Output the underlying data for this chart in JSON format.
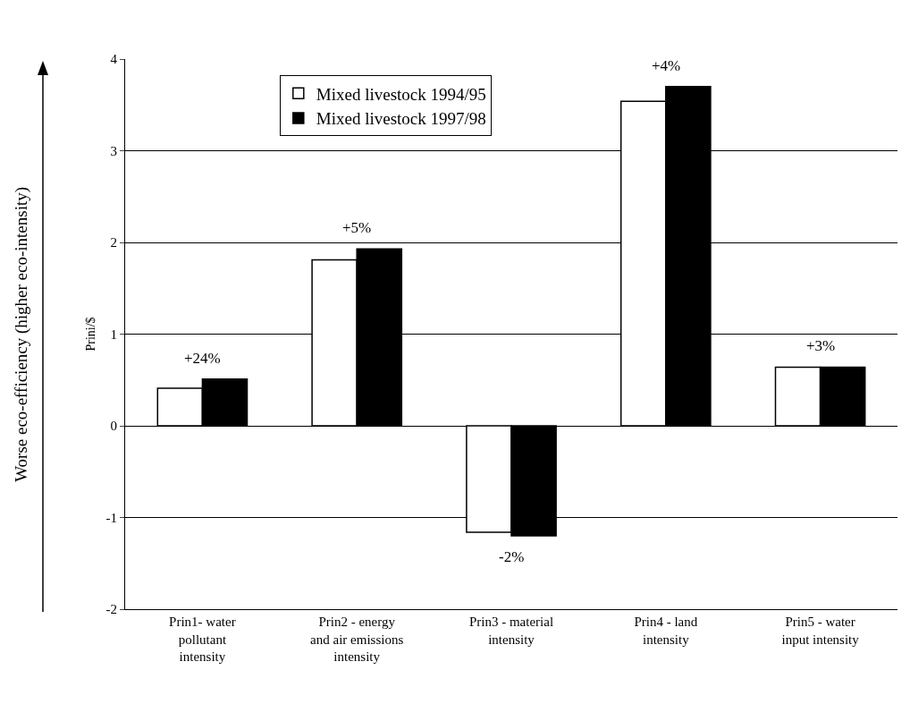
{
  "chart_data": {
    "type": "bar",
    "ylabel": "Prini/$",
    "categories": [
      "Prin1- water pollutant intensity",
      "Prin2 - energy and air emissions intensity",
      "Prin3 - material intensity",
      "Prin4 - land intensity",
      "Prin5 - water input intensity"
    ],
    "series": [
      {
        "name": "Mixed livestock 1994/95",
        "color": "#ffffff",
        "values": [
          0.41,
          1.81,
          -1.16,
          3.54,
          0.64
        ]
      },
      {
        "name": "Mixed livestock 1997/98",
        "color": "#000000",
        "values": [
          0.51,
          1.93,
          -1.2,
          3.7,
          0.64
        ]
      }
    ],
    "ylim": [
      -2,
      4
    ],
    "yticks": [
      -2,
      -1,
      0,
      1,
      2,
      3,
      4
    ],
    "grid": "y",
    "legend": "top left",
    "annotations": [
      {
        "text": "+24%",
        "x": "Prin1- water pollutant intensity",
        "y": 0.51
      },
      {
        "text": "+5%",
        "x": "Prin2 - energy and air emissions intensity",
        "y": 1.93
      },
      {
        "text": "-2%",
        "x": "Prin3 - material intensity",
        "y": -1.2
      },
      {
        "text": "+4%",
        "x": "Prin4 - land intensity",
        "y": 3.7
      },
      {
        "text": "+3%",
        "x": "Prin5 - water input intensity",
        "y": 0.64
      },
      "Worse eco-efficiency (higher eco-intensity)"
    ]
  }
}
